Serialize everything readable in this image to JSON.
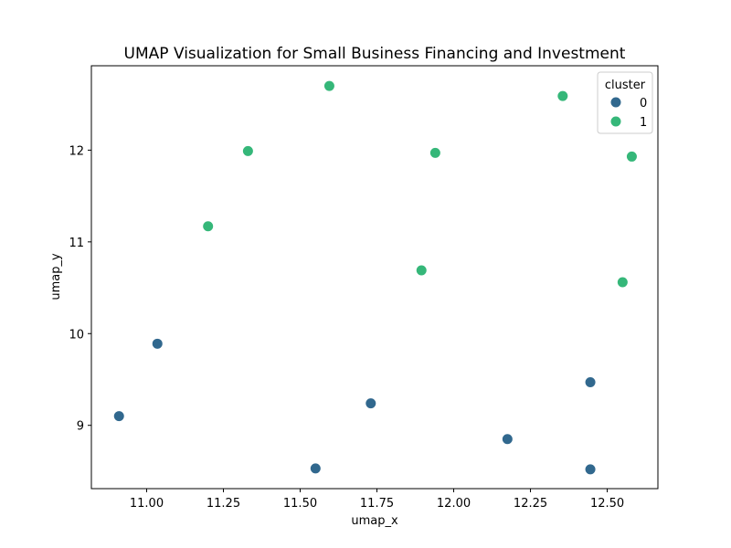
{
  "chart_data": {
    "type": "scatter",
    "title": "UMAP Visualization for Small Business Financing and Investment",
    "xlabel": "umap_x",
    "ylabel": "umap_y",
    "xlim": [
      10.82,
      12.665
    ],
    "ylim": [
      8.31,
      12.92
    ],
    "xticks": [
      "11.00",
      "11.25",
      "11.50",
      "11.75",
      "12.00",
      "12.25",
      "12.50"
    ],
    "xtick_values": [
      11.0,
      11.25,
      11.5,
      11.75,
      12.0,
      12.25,
      12.5
    ],
    "yticks": [
      "9",
      "10",
      "11",
      "12"
    ],
    "ytick_values": [
      9,
      10,
      11,
      12
    ],
    "grid": false,
    "legend": {
      "title": "cluster",
      "placement": "top-right"
    },
    "series": [
      {
        "name": "0",
        "color": "#31688e",
        "points": [
          {
            "x": 10.91,
            "y": 9.1
          },
          {
            "x": 11.035,
            "y": 9.89
          },
          {
            "x": 11.55,
            "y": 8.53
          },
          {
            "x": 11.73,
            "y": 9.24
          },
          {
            "x": 12.175,
            "y": 8.85
          },
          {
            "x": 12.445,
            "y": 9.47
          },
          {
            "x": 12.445,
            "y": 8.52
          }
        ]
      },
      {
        "name": "1",
        "color": "#35b779",
        "points": [
          {
            "x": 11.2,
            "y": 11.17
          },
          {
            "x": 11.33,
            "y": 11.99
          },
          {
            "x": 11.595,
            "y": 12.7
          },
          {
            "x": 11.895,
            "y": 10.69
          },
          {
            "x": 11.94,
            "y": 11.97
          },
          {
            "x": 12.355,
            "y": 12.59
          },
          {
            "x": 12.55,
            "y": 10.56
          },
          {
            "x": 12.58,
            "y": 11.93
          }
        ]
      }
    ]
  }
}
